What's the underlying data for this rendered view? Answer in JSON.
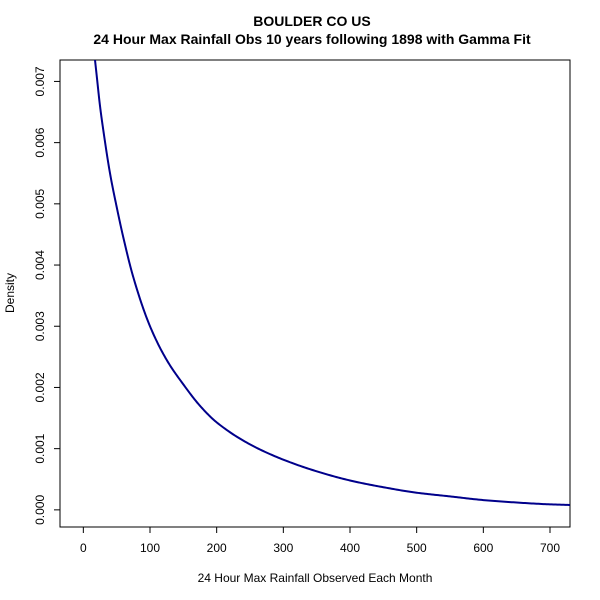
{
  "chart_data": {
    "type": "line",
    "title": "BOULDER CO US",
    "subtitle": "24 Hour Max Rainfall Obs 10 years following 1898 with Gamma Fit",
    "xlabel": "24 Hour Max Rainfall Observed Each Month",
    "ylabel": "Density",
    "xlim": [
      -35,
      730
    ],
    "ylim": [
      -0.00028,
      0.00735
    ],
    "x_ticks": [
      0,
      100,
      200,
      300,
      400,
      500,
      600,
      700
    ],
    "x_tick_labels": [
      "0",
      "100",
      "200",
      "300",
      "400",
      "500",
      "600",
      "700"
    ],
    "y_ticks": [
      0,
      0.001,
      0.002,
      0.003,
      0.004,
      0.005,
      0.006,
      0.007
    ],
    "y_tick_labels": [
      "0.000",
      "0.001",
      "0.002",
      "0.003",
      "0.004",
      "0.005",
      "0.006",
      "0.007"
    ],
    "grid": false,
    "line_color": "#00008B",
    "series": [
      {
        "x": [
          17,
          20,
          25,
          30,
          40,
          50,
          60,
          75,
          100,
          125,
          150,
          175,
          200,
          250,
          300,
          350,
          400,
          450,
          500,
          550,
          600,
          650,
          700,
          730
        ],
        "y": [
          0.0074,
          0.0071,
          0.0066,
          0.0062,
          0.0055,
          0.00495,
          0.00445,
          0.0038,
          0.003,
          0.00245,
          0.00205,
          0.0017,
          0.00143,
          0.00107,
          0.00082,
          0.00063,
          0.00048,
          0.00037,
          0.00028,
          0.00022,
          0.00016,
          0.00012,
          9e-05,
          8e-05
        ]
      }
    ]
  }
}
